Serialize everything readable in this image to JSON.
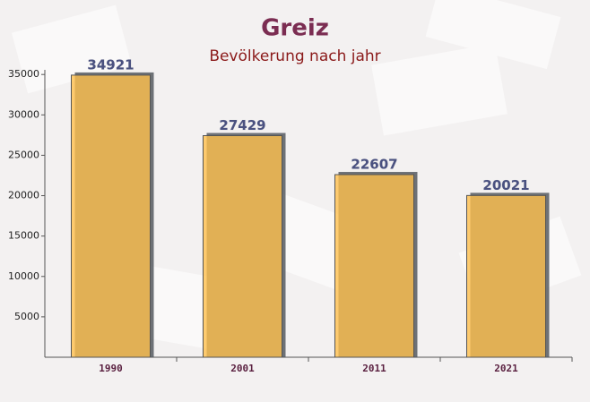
{
  "chart_data": {
    "type": "bar",
    "title": "Greiz",
    "subtitle": "Bevölkerung nach jahr",
    "categories": [
      "1990",
      "2001",
      "2011",
      "2021"
    ],
    "values": [
      34921,
      27429,
      22607,
      20021
    ],
    "color": "#ffc04d",
    "ylim": [
      0,
      35000
    ],
    "yticks": [
      5000,
      10000,
      15000,
      20000,
      25000,
      30000,
      35000
    ]
  }
}
